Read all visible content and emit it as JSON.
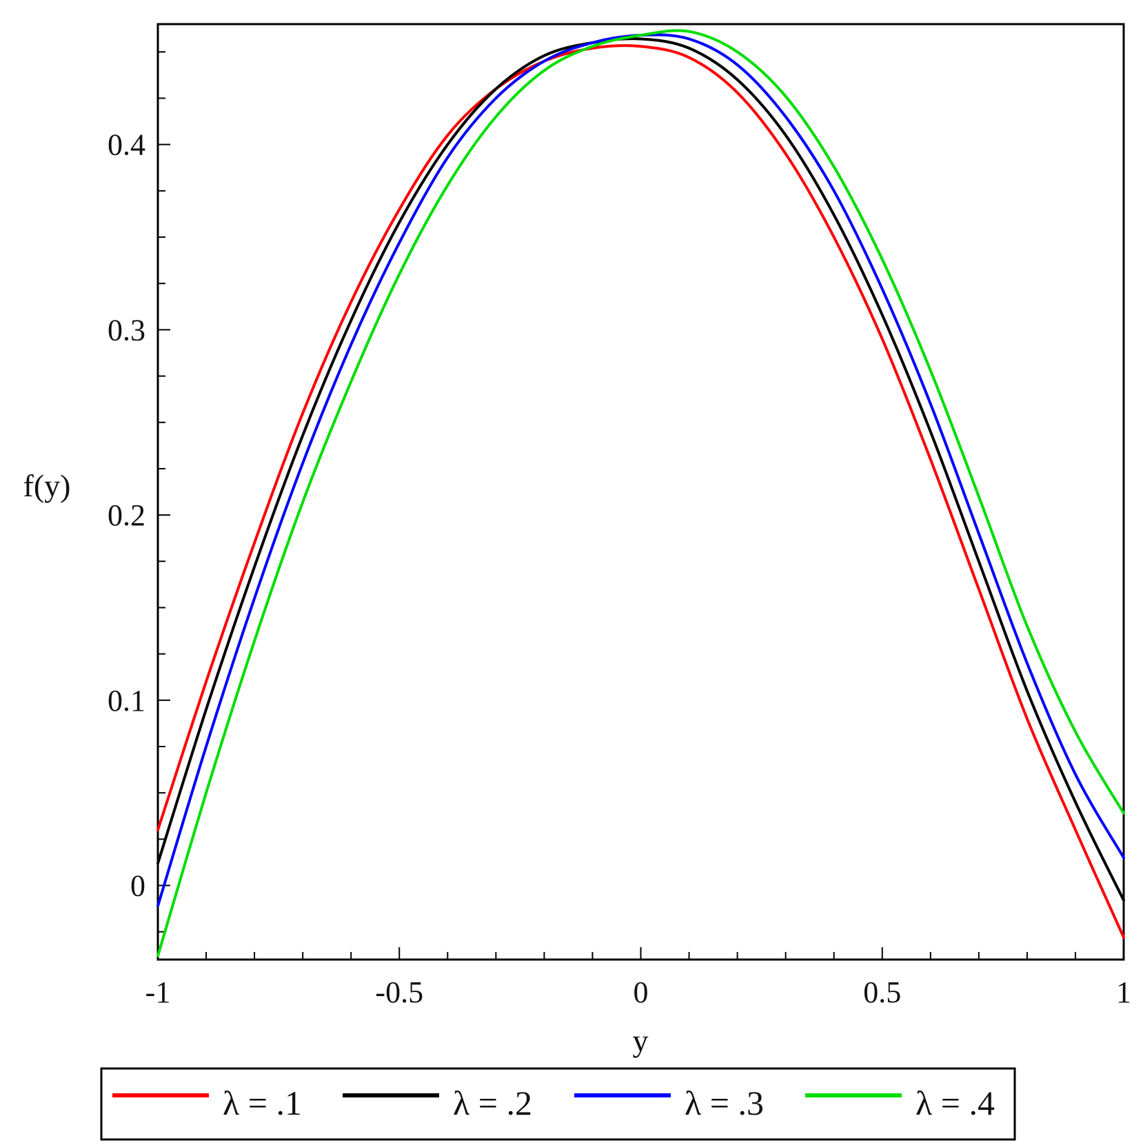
{
  "chart_data": {
    "type": "line",
    "title": "",
    "xlabel": "y",
    "ylabel": "f(y)",
    "xlim": [
      -1,
      1
    ],
    "ylim": [
      -0.04,
      0.465
    ],
    "x_ticks": [
      {
        "value": -1,
        "label": "-1"
      },
      {
        "value": -0.5,
        "label": "-0.5"
      },
      {
        "value": 0,
        "label": "0"
      },
      {
        "value": 0.5,
        "label": "0.5"
      },
      {
        "value": 1,
        "label": "1"
      }
    ],
    "y_ticks": [
      {
        "value": 0,
        "label": "0"
      },
      {
        "value": 0.1,
        "label": "0.1"
      },
      {
        "value": 0.2,
        "label": "0.2"
      },
      {
        "value": 0.3,
        "label": "0.3"
      },
      {
        "value": 0.4,
        "label": "0.4"
      }
    ],
    "x": [
      -1,
      -0.9,
      -0.8,
      -0.7,
      -0.6,
      -0.5,
      -0.4,
      -0.3,
      -0.2,
      -0.1,
      0,
      0.1,
      0.2,
      0.3,
      0.4,
      0.5,
      0.6,
      0.7,
      0.8,
      0.9,
      1
    ],
    "legend_placement": "bottom",
    "grid": false,
    "series": [
      {
        "name": "λ = .1",
        "color": "#ff0000",
        "values": [
          0.03,
          0.11,
          0.185,
          0.255,
          0.315,
          0.365,
          0.405,
          0.43,
          0.445,
          0.452,
          0.453,
          0.447,
          0.428,
          0.395,
          0.35,
          0.295,
          0.23,
          0.16,
          0.09,
          0.03,
          -0.028
        ]
      },
      {
        "name": "λ = .2",
        "color": "#000000",
        "values": [
          0.012,
          0.095,
          0.172,
          0.243,
          0.305,
          0.358,
          0.4,
          0.43,
          0.448,
          0.455,
          0.457,
          0.452,
          0.435,
          0.405,
          0.362,
          0.308,
          0.245,
          0.175,
          0.105,
          0.045,
          -0.008
        ]
      },
      {
        "name": "λ = .3",
        "color": "#0000ff",
        "values": [
          -0.011,
          0.075,
          0.155,
          0.228,
          0.292,
          0.347,
          0.393,
          0.425,
          0.445,
          0.455,
          0.459,
          0.457,
          0.443,
          0.415,
          0.375,
          0.322,
          0.26,
          0.19,
          0.12,
          0.06,
          0.015
        ]
      },
      {
        "name": "λ = .4",
        "color": "#00dd00",
        "values": [
          -0.038,
          0.05,
          0.132,
          0.207,
          0.272,
          0.33,
          0.378,
          0.415,
          0.44,
          0.453,
          0.459,
          0.461,
          0.45,
          0.426,
          0.388,
          0.338,
          0.278,
          0.21,
          0.14,
          0.083,
          0.039
        ]
      }
    ]
  }
}
